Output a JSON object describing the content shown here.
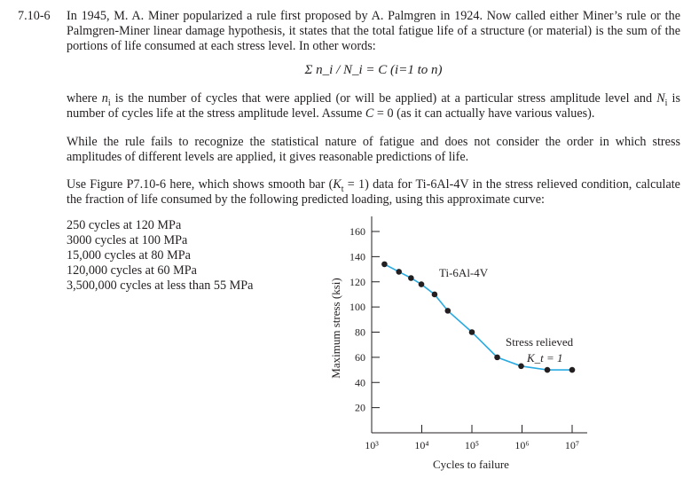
{
  "problem": {
    "number": "7.10-6",
    "p1": "In 1945, M. A. Miner popularized a rule first proposed by A. Palmgren in 1924. Now called either Miner’s rule or the Palmgren-Miner linear damage hypothesis, it states that the total fatigue life of a structure (or material) is the sum of the portions of life consumed at each stress level. In other words:",
    "formula": "Σ n_i / N_i = C (i=1 to n)",
    "p2": "where n_i is the number of cycles that were applied (or will be applied) at a particular stress amplitude level and N_i is number of cycles life at the stress amplitude level. Assume C = 0 (as it can actually have various values).",
    "p3": "While the rule fails to recognize the statistical nature of fatigue and does not consider the order in which stress amplitudes of different levels are applied, it gives reasonable predictions of life.",
    "p4": "Use Figure P7.10-6 here, which shows smooth bar (K_t = 1) data for Ti-6Al-4V in the stress relieved condition, calculate the fraction of life consumed by the following predicted loading, using this approximate curve:",
    "loads": [
      "250 cycles at 120 MPa",
      "3000 cycles at 100 MPa",
      "15,000 cycles at 80 MPa",
      "120,000 cycles at 60 MPa",
      "3,500,000 cycles at less than 55 MPa"
    ]
  },
  "chart_data": {
    "type": "line",
    "xscale": "log",
    "xlabel": "Cycles to failure",
    "ylabel": "Maximum stress (ksi)",
    "xlim": [
      1000,
      10000000
    ],
    "ylim": [
      0,
      160
    ],
    "xticks": [
      "10³",
      "10⁴",
      "10⁵",
      "10⁶",
      "10⁷"
    ],
    "xtick_values": [
      1000,
      10000,
      100000,
      1000000,
      10000000
    ],
    "yticks": [
      20,
      40,
      60,
      80,
      100,
      120,
      140,
      160
    ],
    "annotations": [
      "Ti-6Al-4V",
      "Stress relieved",
      "K_t = 1"
    ],
    "series": [
      {
        "color": "#29abe2",
        "x": [
          1800,
          3500,
          6100,
          9800,
          18000,
          33000,
          100000,
          320000,
          960000,
          3200000,
          10000000
        ],
        "y": [
          134,
          128,
          123,
          118,
          110,
          97,
          80,
          60,
          53,
          50,
          50
        ]
      }
    ]
  }
}
